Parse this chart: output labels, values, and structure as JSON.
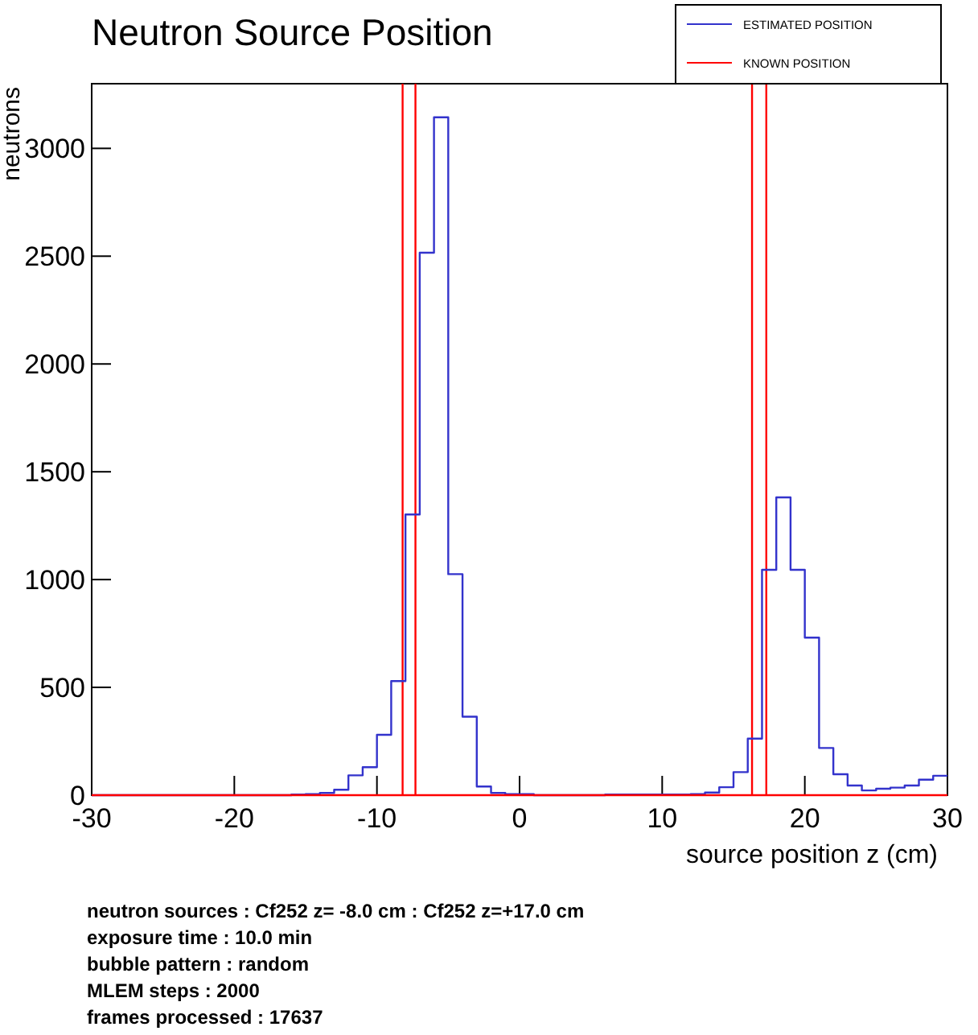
{
  "chart_data": {
    "type": "histogram",
    "title": "Neutron Source Position",
    "xlabel": "source position z (cm)",
    "ylabel": "neutrons",
    "bins": [
      -30,
      -29,
      -28,
      -27,
      -26,
      -25,
      -24,
      -23,
      -22,
      -21,
      -20,
      -19,
      -18,
      -17,
      -16,
      -15,
      -14,
      -13,
      -12,
      -11,
      -10,
      -9,
      -8,
      -7,
      -6,
      -5,
      -4,
      -3,
      -2,
      -1,
      0,
      1,
      2,
      3,
      4,
      5,
      6,
      7,
      8,
      9,
      10,
      11,
      12,
      13,
      14,
      15,
      16,
      17,
      18,
      19,
      20,
      21,
      22,
      23,
      24,
      25,
      26,
      27,
      28,
      29,
      30
    ],
    "series": [
      {
        "name": "ESTIMATED POSITION",
        "color": "#3333cc",
        "values": [
          0,
          0,
          0,
          0,
          0,
          0,
          0,
          0,
          0,
          0,
          0,
          0,
          0,
          0,
          3,
          5,
          10,
          25,
          92,
          130,
          280,
          529,
          1302,
          2516,
          3144,
          1025,
          364,
          40,
          10,
          5,
          5,
          0,
          0,
          0,
          0,
          0,
          3,
          3,
          3,
          3,
          3,
          3,
          5,
          12,
          37,
          107,
          262,
          1045,
          1381,
          1045,
          731,
          219,
          97,
          45,
          22,
          30,
          35,
          45,
          72,
          90
        ]
      },
      {
        "name": "KNOWN POSITION",
        "type": "line",
        "color": "#ff0000",
        "x": [
          -30,
          30
        ],
        "values": [
          0,
          0
        ]
      }
    ],
    "xlim": [
      -30,
      30
    ],
    "ylim": [
      0,
      3300
    ],
    "xticks": [
      -30,
      -20,
      -10,
      0,
      10,
      20,
      30
    ],
    "yticks": [
      0,
      500,
      1000,
      1500,
      2000,
      2500,
      3000
    ],
    "ref_lines": [
      {
        "axis": "x",
        "value": -8.2,
        "color": "#ff0000"
      },
      {
        "axis": "x",
        "value": -7.3,
        "color": "#ff0000"
      },
      {
        "axis": "x",
        "value": 16.3,
        "color": "#ff0000"
      },
      {
        "axis": "x",
        "value": 17.3,
        "color": "#ff0000"
      }
    ],
    "legend": "top right",
    "annotations": [
      "neutron sources  : Cf252 z= -8.0 cm : Cf252 z=+17.0 cm",
      "exposure time : 10.0 min",
      "bubble pattern : random",
      "MLEM steps : 2000",
      "frames processed : 17637"
    ]
  }
}
